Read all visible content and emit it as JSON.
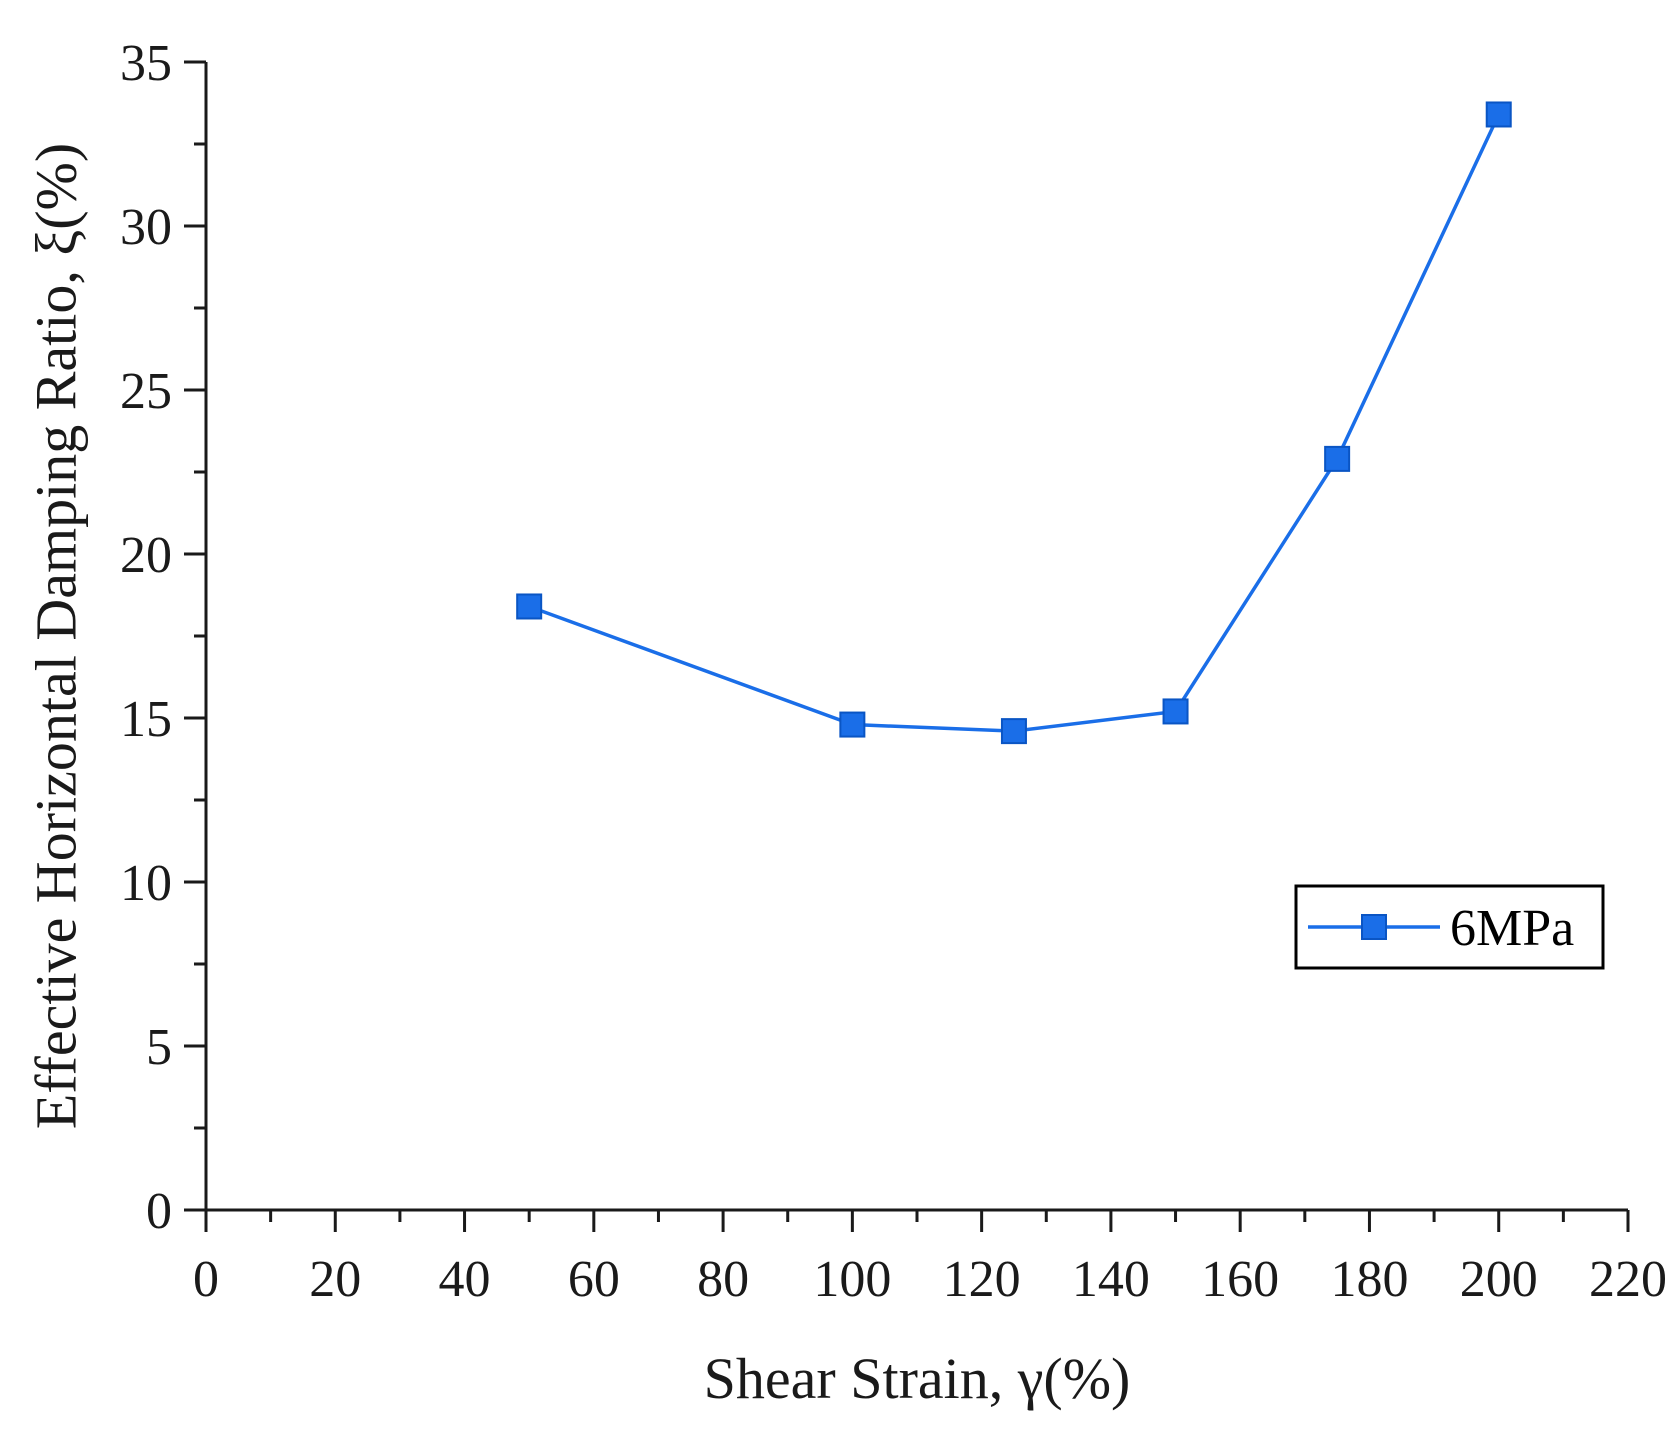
{
  "chart_data": {
    "type": "line",
    "title": "",
    "xlabel": "Shear Strain, γ(%)",
    "ylabel": "Effective Horizontal Damping Ratio, ξ(%)",
    "xlim": [
      0,
      220
    ],
    "ylim": [
      0,
      35
    ],
    "x_ticks": [
      0,
      20,
      40,
      60,
      80,
      100,
      120,
      140,
      160,
      180,
      200,
      220
    ],
    "y_ticks": [
      0,
      5,
      10,
      15,
      20,
      25,
      30,
      35
    ],
    "x_tick_labels": [
      "0",
      "20",
      "40",
      "60",
      "80",
      "100",
      "120",
      "140",
      "160",
      "180",
      "200",
      "220"
    ],
    "y_tick_labels": [
      "0",
      "5",
      "10",
      "15",
      "20",
      "25",
      "30",
      "35"
    ],
    "grid": false,
    "legend_position": "right",
    "series": [
      {
        "name": "6MPa",
        "marker": "square",
        "color": "#1a6ee8",
        "x": [
          50,
          100,
          125,
          150,
          175,
          200
        ],
        "y": [
          18.4,
          14.8,
          14.6,
          15.2,
          22.9,
          33.4
        ]
      }
    ]
  }
}
